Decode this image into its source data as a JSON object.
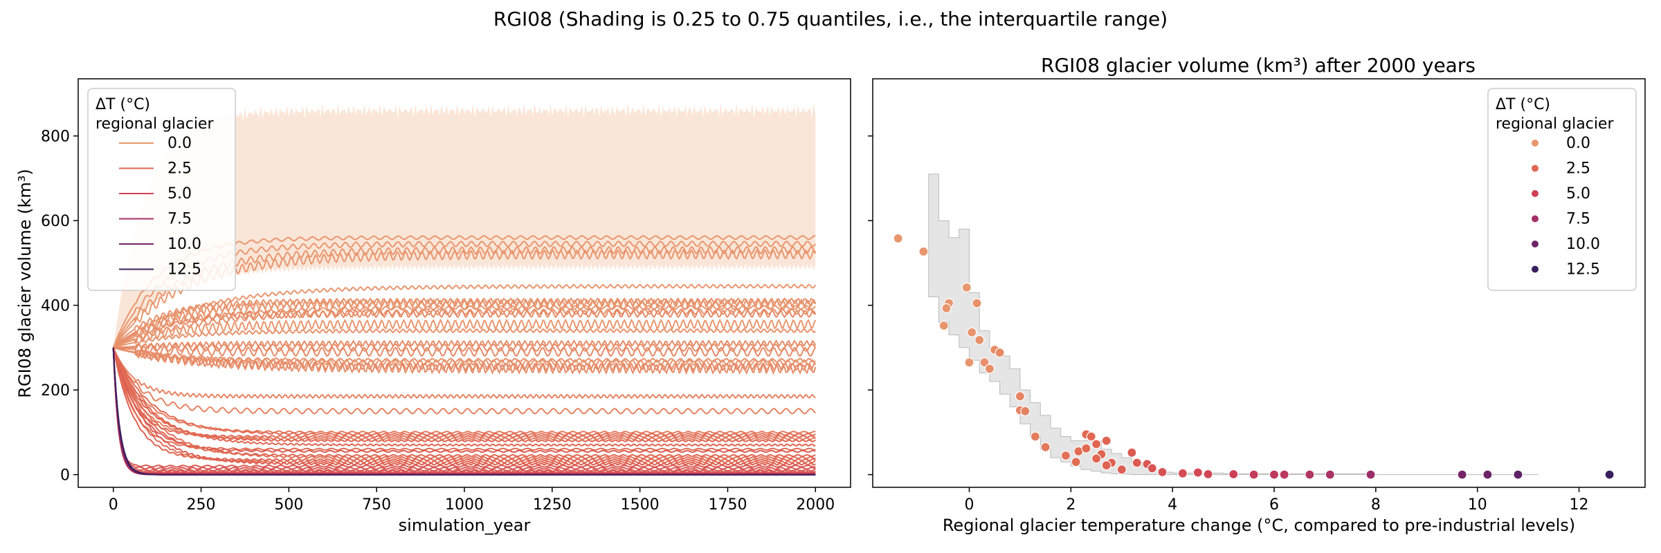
{
  "figure": {
    "suptitle": "RGI08 (Shading is 0.25 to 0.75 quantiles, i.e., the interquartile range)"
  },
  "colors": {
    "dt_0.0": "#e8966e",
    "dt_2.5": "#e06651",
    "dt_5.0": "#cf4055",
    "dt_7.5": "#a52e69",
    "dt_10.0": "#6e2467",
    "dt_12.5": "#3a1f5e",
    "iqr_fill_left": "#f8dcc8",
    "iqr_fill_right": "#cccccc"
  },
  "chart_data": [
    {
      "type": "line",
      "title": "",
      "xlabel": "simulation_year",
      "ylabel": "RGI08 glacier volume (km³)",
      "xlim": [
        -100,
        2100
      ],
      "ylim": [
        -30,
        935
      ],
      "xticks": [
        "0",
        "250",
        "500",
        "750",
        "1000",
        "1250",
        "1500",
        "1750",
        "2000"
      ],
      "yticks": [
        "0",
        "200",
        "400",
        "600",
        "800"
      ],
      "legend": {
        "title": [
          "ΔT (°C)",
          "regional glacier"
        ],
        "entries": [
          "0.0",
          "2.5",
          "5.0",
          "7.5",
          "10.0",
          "12.5"
        ],
        "placement": "upper-left"
      },
      "initial_volume": 300,
      "iqr_band": {
        "x": [
          0,
          2000
        ],
        "lower": [
          300,
          490
        ],
        "upper": [
          300,
          860
        ]
      },
      "equilibrium_volumes": [
        [
          560,
          -1.2
        ],
        [
          545,
          -0.9
        ],
        [
          530,
          -0.8
        ],
        [
          520,
          -0.5
        ],
        [
          445,
          -0.1
        ],
        [
          410,
          0.3
        ],
        [
          405,
          -0.4
        ],
        [
          400,
          -0.4
        ],
        [
          395,
          0.1
        ],
        [
          385,
          0.4
        ],
        [
          380,
          0.5
        ],
        [
          355,
          -0.3
        ],
        [
          340,
          0.2
        ],
        [
          310,
          0.5
        ],
        [
          300,
          0.5
        ],
        [
          290,
          0.6
        ],
        [
          270,
          0.4
        ],
        [
          265,
          0.0
        ],
        [
          255,
          0.6
        ],
        [
          250,
          0.5
        ],
        [
          185,
          1.0
        ],
        [
          150,
          1.0
        ],
        [
          100,
          1.4
        ],
        [
          95,
          2.3
        ],
        [
          90,
          2.4
        ],
        [
          85,
          1.3
        ],
        [
          80,
          2.6
        ],
        [
          70,
          2.5
        ],
        [
          60,
          2.2
        ],
        [
          55,
          3.2
        ],
        [
          45,
          2.5
        ],
        [
          40,
          2.1
        ],
        [
          35,
          2.7
        ],
        [
          30,
          2.2
        ],
        [
          25,
          3.0
        ],
        [
          20,
          3.3
        ],
        [
          15,
          3.7
        ],
        [
          10,
          3.0
        ],
        [
          8,
          3.5
        ],
        [
          5,
          3.9
        ],
        [
          3,
          4.4
        ],
        [
          2,
          4.6
        ],
        [
          1,
          5.3
        ],
        [
          0,
          5.8
        ],
        [
          0,
          6.0
        ],
        [
          0,
          7.1
        ],
        [
          0,
          8.0
        ],
        [
          0,
          9.7
        ],
        [
          0,
          10.2
        ],
        [
          0,
          10.8
        ],
        [
          0,
          12.6
        ]
      ]
    },
    {
      "type": "scatter",
      "title": "RGI08 glacier volume (km³) after 2000 years",
      "xlabel": "Regional glacier temperature change (°C, compared to pre-industrial levels)",
      "ylabel": "",
      "xlim": [
        -1.9,
        13.3
      ],
      "ylim": [
        -30,
        935
      ],
      "xticks": [
        "0",
        "2",
        "4",
        "6",
        "8",
        "10",
        "12"
      ],
      "legend": {
        "title": [
          "ΔT (°C)",
          "regional glacier"
        ],
        "entries": [
          "0.0",
          "2.5",
          "5.0",
          "7.5",
          "10.0",
          "12.5"
        ],
        "placement": "upper-right"
      },
      "iqr_band": {
        "x": [
          -0.8,
          -0.6,
          -0.4,
          -0.2,
          0.0,
          0.2,
          0.4,
          0.6,
          0.8,
          1.0,
          1.2,
          1.4,
          1.6,
          1.8,
          2.0,
          2.2,
          2.4,
          2.6,
          2.8,
          3.0,
          3.2,
          3.4,
          3.6,
          3.8,
          4.0,
          5.0,
          6.0,
          8.0,
          10.0,
          11.2
        ],
        "lower": [
          420,
          360,
          330,
          300,
          270,
          240,
          220,
          190,
          160,
          120,
          90,
          60,
          40,
          30,
          20,
          12,
          8,
          4,
          2,
          1,
          0,
          0,
          0,
          0,
          0,
          0,
          0,
          0,
          0,
          0
        ],
        "upper": [
          710,
          600,
          560,
          580,
          430,
          340,
          300,
          280,
          250,
          200,
          170,
          140,
          110,
          90,
          80,
          80,
          80,
          60,
          50,
          40,
          30,
          20,
          12,
          6,
          4,
          2,
          2,
          0,
          0,
          0
        ]
      },
      "points": [
        {
          "x": -1.4,
          "y": 558
        },
        {
          "x": -0.9,
          "y": 527
        },
        {
          "x": -0.05,
          "y": 442
        },
        {
          "x": 0.15,
          "y": 405
        },
        {
          "x": -0.4,
          "y": 405
        },
        {
          "x": -0.45,
          "y": 393
        },
        {
          "x": -0.5,
          "y": 352
        },
        {
          "x": 0.05,
          "y": 336
        },
        {
          "x": 0.2,
          "y": 318
        },
        {
          "x": 0.5,
          "y": 295
        },
        {
          "x": 0.6,
          "y": 288
        },
        {
          "x": 0.3,
          "y": 265
        },
        {
          "x": 0.0,
          "y": 265
        },
        {
          "x": 0.4,
          "y": 250
        },
        {
          "x": 1.0,
          "y": 185
        },
        {
          "x": 1.0,
          "y": 152
        },
        {
          "x": 1.1,
          "y": 150
        },
        {
          "x": 1.3,
          "y": 90
        },
        {
          "x": 1.5,
          "y": 65
        },
        {
          "x": 1.9,
          "y": 45
        },
        {
          "x": 2.1,
          "y": 30
        },
        {
          "x": 2.15,
          "y": 55
        },
        {
          "x": 2.3,
          "y": 95
        },
        {
          "x": 2.4,
          "y": 90
        },
        {
          "x": 2.3,
          "y": 62
        },
        {
          "x": 2.5,
          "y": 72
        },
        {
          "x": 2.7,
          "y": 80
        },
        {
          "x": 2.6,
          "y": 48
        },
        {
          "x": 2.5,
          "y": 38
        },
        {
          "x": 2.8,
          "y": 28
        },
        {
          "x": 2.7,
          "y": 22
        },
        {
          "x": 3.0,
          "y": 12
        },
        {
          "x": 3.2,
          "y": 52
        },
        {
          "x": 3.3,
          "y": 28
        },
        {
          "x": 3.5,
          "y": 25
        },
        {
          "x": 3.6,
          "y": 15
        },
        {
          "x": 3.8,
          "y": 6
        },
        {
          "x": 4.2,
          "y": 3
        },
        {
          "x": 4.5,
          "y": 5
        },
        {
          "x": 4.7,
          "y": 1
        },
        {
          "x": 5.2,
          "y": 1
        },
        {
          "x": 5.6,
          "y": 0
        },
        {
          "x": 6.0,
          "y": 0
        },
        {
          "x": 6.2,
          "y": 0
        },
        {
          "x": 6.7,
          "y": 0
        },
        {
          "x": 7.1,
          "y": 0
        },
        {
          "x": 7.9,
          "y": 0
        },
        {
          "x": 9.7,
          "y": 0
        },
        {
          "x": 10.2,
          "y": 0
        },
        {
          "x": 10.8,
          "y": 0
        },
        {
          "x": 12.6,
          "y": 0
        }
      ]
    }
  ]
}
